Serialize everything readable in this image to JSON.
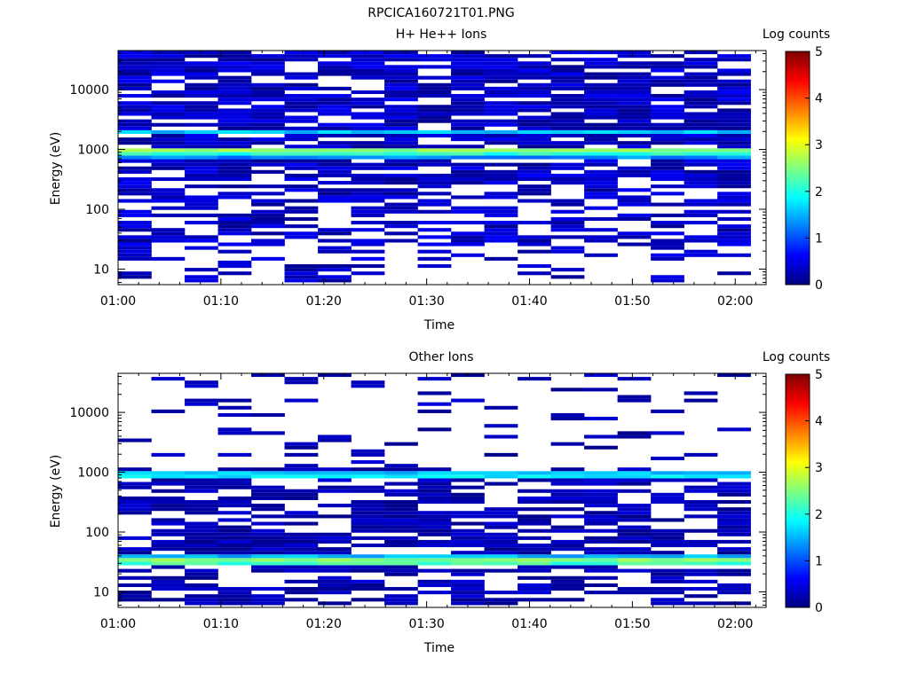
{
  "figure": {
    "title": "RPCICA160721T01.PNG"
  },
  "colors": {
    "colormap": [
      "#00007f",
      "#0000ff",
      "#007fff",
      "#00ffff",
      "#7fff7f",
      "#ffff00",
      "#ff7f00",
      "#ff0000",
      "#7f0000"
    ],
    "axis": "#000000",
    "background": "#ffffff"
  },
  "chart_data": [
    {
      "type": "heatmap",
      "title": "H+ He++ Ions",
      "xlabel": "Time",
      "ylabel": "Energy (eV)",
      "y_scale": "log",
      "ylim": [
        5.5,
        45000
      ],
      "x_range_minutes": [
        0,
        63
      ],
      "x_tick_minutes": [
        0,
        10,
        20,
        30,
        40,
        50,
        60
      ],
      "x_tick_labels": [
        "01:00",
        "01:10",
        "01:20",
        "01:30",
        "01:40",
        "01:50",
        "02:00"
      ],
      "y_tick_values": [
        10,
        100,
        1000,
        10000
      ],
      "y_tick_labels": [
        "10",
        "100",
        "1000",
        "10000"
      ],
      "colorbar": {
        "label": "Log counts",
        "range": [
          0,
          5
        ],
        "tick_values": [
          0,
          1,
          2,
          3,
          4,
          5
        ],
        "tick_labels": [
          "0",
          "1",
          "2",
          "3",
          "4",
          "5"
        ]
      },
      "n_time_bins": 19,
      "energy_range": [
        6,
        45000
      ],
      "bands": [
        {
          "energy": 1000,
          "value": 2.6
        },
        {
          "energy": 850,
          "value": 2.1
        },
        {
          "energy": 780,
          "value": 1.3
        },
        {
          "energy": 1850,
          "value": 1.6
        }
      ],
      "background_level": 0.4,
      "low_energy_cutoff": 25
    },
    {
      "type": "heatmap",
      "title": "Other Ions",
      "xlabel": "Time",
      "ylabel": "Energy (eV)",
      "y_scale": "log",
      "ylim": [
        5.5,
        45000
      ],
      "x_range_minutes": [
        0,
        63
      ],
      "x_tick_minutes": [
        0,
        10,
        20,
        30,
        40,
        50,
        60
      ],
      "x_tick_labels": [
        "01:00",
        "01:10",
        "01:20",
        "01:30",
        "01:40",
        "01:50",
        "02:00"
      ],
      "y_tick_values": [
        10,
        100,
        1000,
        10000
      ],
      "y_tick_labels": [
        "10",
        "100",
        "1000",
        "10000"
      ],
      "colorbar": {
        "label": "Log counts",
        "range": [
          0,
          5
        ],
        "tick_values": [
          0,
          1,
          2,
          3,
          4,
          5
        ],
        "tick_labels": [
          "0",
          "1",
          "2",
          "3",
          "4",
          "5"
        ]
      },
      "n_time_bins": 19,
      "energy_range": [
        6,
        45000
      ],
      "bands": [
        {
          "energy": 1000,
          "value": 1.6
        },
        {
          "energy": 870,
          "value": 1.8
        },
        {
          "energy": 35,
          "value": 2.5
        },
        {
          "energy": 31,
          "value": 2.2
        },
        {
          "energy": 40,
          "value": 1.5
        }
      ],
      "background_level": 0.3,
      "sparse_above": 1200
    }
  ]
}
